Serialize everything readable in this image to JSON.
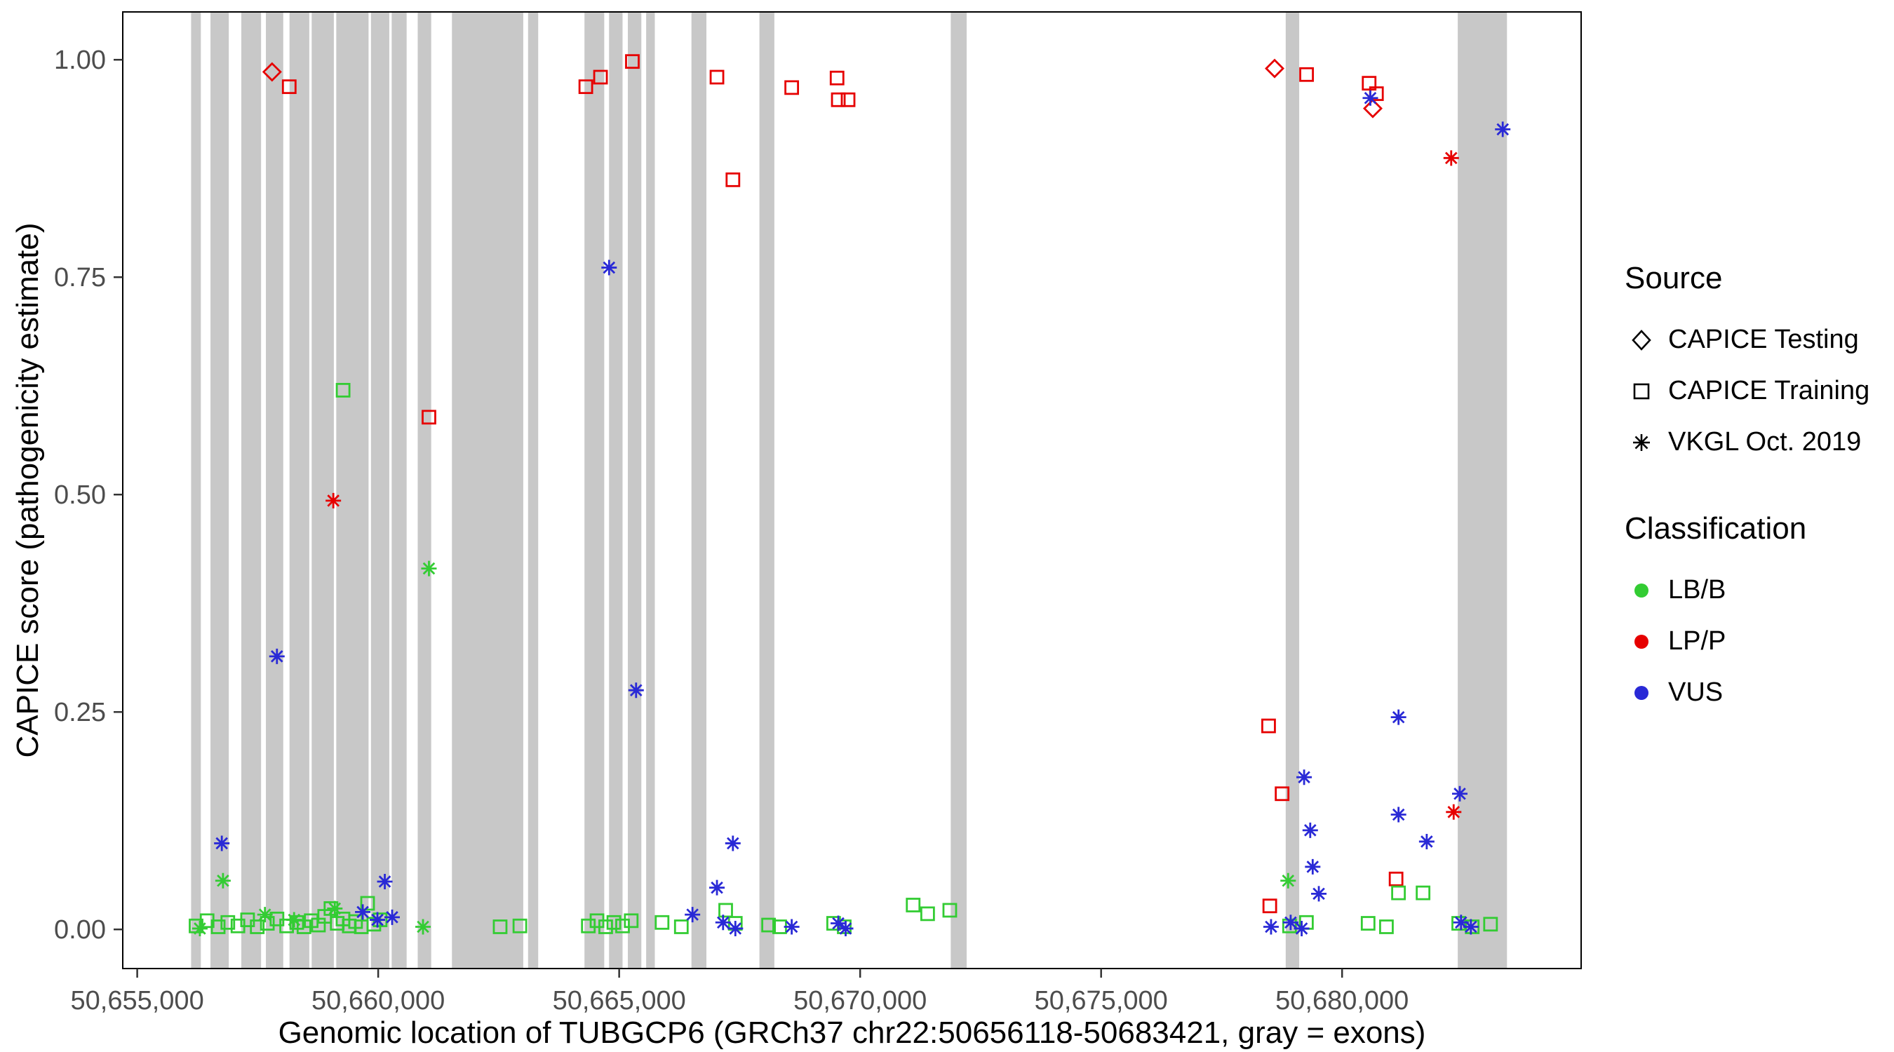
{
  "chart_data": {
    "type": "scatter",
    "title": "",
    "xlabel": "Genomic location of TUBGCP6 (GRCh37 chr22:50656118-50683421, gray = exons)",
    "ylabel": "CAPICE score (pathogenicity estimate)",
    "xlim": [
      50654700,
      50684960
    ],
    "ylim": [
      -0.045,
      1.055
    ],
    "grid": false,
    "legend_position": "right",
    "x_ticks": [
      50655000,
      50660000,
      50665000,
      50670000,
      50675000,
      50680000
    ],
    "x_tick_labels": [
      "50,655,000",
      "50,660,000",
      "50,665,000",
      "50,670,000",
      "50,675,000",
      "50,680,000"
    ],
    "y_ticks": [
      0,
      0.25,
      0.5,
      0.75,
      1.0
    ],
    "y_tick_labels": [
      "0.00",
      "0.25",
      "0.50",
      "0.75",
      "1.00"
    ],
    "exon_color": "#c8c8c8",
    "colors": {
      "LB/B": "#33cc33",
      "LP/P": "#e60000",
      "VUS": "#2929d6"
    },
    "exons": [
      [
        50656118,
        50656320
      ],
      [
        50656520,
        50656900
      ],
      [
        50657160,
        50657570
      ],
      [
        50657670,
        50658030
      ],
      [
        50658160,
        50658570
      ],
      [
        50658620,
        50659080
      ],
      [
        50659130,
        50659800
      ],
      [
        50659850,
        50660230
      ],
      [
        50660280,
        50660590
      ],
      [
        50660820,
        50661100
      ],
      [
        50661530,
        50663010
      ],
      [
        50663110,
        50663320
      ],
      [
        50664280,
        50664690
      ],
      [
        50664790,
        50665070
      ],
      [
        50665180,
        50665460
      ],
      [
        50665560,
        50665740
      ],
      [
        50666500,
        50666810
      ],
      [
        50667910,
        50668220
      ],
      [
        50671880,
        50672210
      ],
      [
        50678830,
        50679110
      ],
      [
        50682400,
        50683421
      ]
    ],
    "legend": {
      "source": {
        "title": "Source",
        "items": [
          {
            "label": "CAPICE Testing",
            "shape": "diamond"
          },
          {
            "label": "CAPICE Training",
            "shape": "square"
          },
          {
            "label": "VKGL Oct. 2019",
            "shape": "asterisk"
          }
        ]
      },
      "classification": {
        "title": "Classification",
        "items": [
          {
            "label": "LB/B",
            "color": "#33cc33"
          },
          {
            "label": "LP/P",
            "color": "#e60000"
          },
          {
            "label": "VUS",
            "color": "#2929d6"
          }
        ]
      }
    },
    "series": [
      {
        "name": "CAPICE Testing LP/P",
        "shape": "diamond",
        "classification": "LP/P",
        "points": [
          [
            50657798,
            0.986
          ],
          [
            50678600,
            0.99
          ],
          [
            50680637,
            0.944
          ]
        ]
      },
      {
        "name": "CAPICE Training LP/P",
        "shape": "square",
        "classification": "LP/P",
        "points": [
          [
            50658154,
            0.969
          ],
          [
            50661053,
            0.589
          ],
          [
            50664308,
            0.969
          ],
          [
            50664613,
            0.98
          ],
          [
            50665274,
            0.998
          ],
          [
            50667029,
            0.98
          ],
          [
            50667360,
            0.862
          ],
          [
            50668580,
            0.968
          ],
          [
            50669521,
            0.979
          ],
          [
            50669547,
            0.954
          ],
          [
            50669750,
            0.954
          ],
          [
            50679263,
            0.983
          ],
          [
            50680561,
            0.973
          ],
          [
            50680713,
            0.961
          ],
          [
            50678475,
            0.234
          ],
          [
            50678755,
            0.156
          ],
          [
            50681120,
            0.058
          ],
          [
            50678500,
            0.027
          ]
        ]
      },
      {
        "name": "VKGL LP/P",
        "shape": "asterisk",
        "classification": "LP/P",
        "points": [
          [
            50659069,
            0.493
          ],
          [
            50682264,
            0.887
          ],
          [
            50682315,
            0.135
          ]
        ]
      },
      {
        "name": "CAPICE Training LB/B",
        "shape": "square",
        "classification": "LB/B",
        "points": [
          [
            50659272,
            0.62
          ],
          [
            50656221,
            0.004
          ],
          [
            50656450,
            0.01
          ],
          [
            50656680,
            0.003
          ],
          [
            50656880,
            0.008
          ],
          [
            50657090,
            0.004
          ],
          [
            50657290,
            0.011
          ],
          [
            50657490,
            0.003
          ],
          [
            50657700,
            0.007
          ],
          [
            50657900,
            0.012
          ],
          [
            50658100,
            0.004
          ],
          [
            50658310,
            0.008
          ],
          [
            50658460,
            0.003
          ],
          [
            50658610,
            0.01
          ],
          [
            50658760,
            0.005
          ],
          [
            50658890,
            0.015
          ],
          [
            50659020,
            0.024
          ],
          [
            50659150,
            0.007
          ],
          [
            50659270,
            0.012
          ],
          [
            50659400,
            0.004
          ],
          [
            50659530,
            0.009
          ],
          [
            50659650,
            0.003
          ],
          [
            50659780,
            0.03
          ],
          [
            50659910,
            0.006
          ],
          [
            50660040,
            0.011
          ],
          [
            50662530,
            0.003
          ],
          [
            50662940,
            0.004
          ],
          [
            50664360,
            0.004
          ],
          [
            50664540,
            0.01
          ],
          [
            50664720,
            0.003
          ],
          [
            50664890,
            0.008
          ],
          [
            50665070,
            0.004
          ],
          [
            50665250,
            0.01
          ],
          [
            50665890,
            0.008
          ],
          [
            50666290,
            0.003
          ],
          [
            50667210,
            0.022
          ],
          [
            50667410,
            0.007
          ],
          [
            50668100,
            0.005
          ],
          [
            50668330,
            0.003
          ],
          [
            50669450,
            0.007
          ],
          [
            50669670,
            0.003
          ],
          [
            50671100,
            0.028
          ],
          [
            50671400,
            0.018
          ],
          [
            50671860,
            0.022
          ],
          [
            50678910,
            0.004
          ],
          [
            50679260,
            0.008
          ],
          [
            50680540,
            0.007
          ],
          [
            50680920,
            0.003
          ],
          [
            50681170,
            0.042
          ],
          [
            50681680,
            0.042
          ],
          [
            50682420,
            0.007
          ],
          [
            50682700,
            0.003
          ],
          [
            50683080,
            0.006
          ]
        ]
      },
      {
        "name": "VKGL LB/B",
        "shape": "asterisk",
        "classification": "LB/B",
        "points": [
          [
            50656780,
            0.056
          ],
          [
            50656300,
            0.001
          ],
          [
            50657650,
            0.017
          ],
          [
            50658255,
            0.011
          ],
          [
            50659100,
            0.024
          ],
          [
            50660930,
            0.003
          ],
          [
            50661053,
            0.415
          ],
          [
            50678880,
            0.056
          ]
        ]
      },
      {
        "name": "VKGL VUS",
        "shape": "asterisk",
        "classification": "VUS",
        "points": [
          [
            50656755,
            0.099
          ],
          [
            50657899,
            0.314
          ],
          [
            50659679,
            0.02
          ],
          [
            50659984,
            0.011
          ],
          [
            50660137,
            0.055
          ],
          [
            50660289,
            0.014
          ],
          [
            50664791,
            0.761
          ],
          [
            50665351,
            0.275
          ],
          [
            50666521,
            0.017
          ],
          [
            50667029,
            0.048
          ],
          [
            50667156,
            0.008
          ],
          [
            50667360,
            0.099
          ],
          [
            50667411,
            0.001
          ],
          [
            50668580,
            0.003
          ],
          [
            50669547,
            0.007
          ],
          [
            50669699,
            0.001
          ],
          [
            50678526,
            0.003
          ],
          [
            50678933,
            0.008
          ],
          [
            50679161,
            0.001
          ],
          [
            50679212,
            0.175
          ],
          [
            50679339,
            0.114
          ],
          [
            50679390,
            0.072
          ],
          [
            50679517,
            0.041
          ],
          [
            50680586,
            0.956
          ],
          [
            50681171,
            0.244
          ],
          [
            50681171,
            0.132
          ],
          [
            50681756,
            0.101
          ],
          [
            50682442,
            0.156
          ],
          [
            50682468,
            0.008
          ],
          [
            50682672,
            0.003
          ],
          [
            50683333,
            0.92
          ]
        ]
      }
    ]
  }
}
